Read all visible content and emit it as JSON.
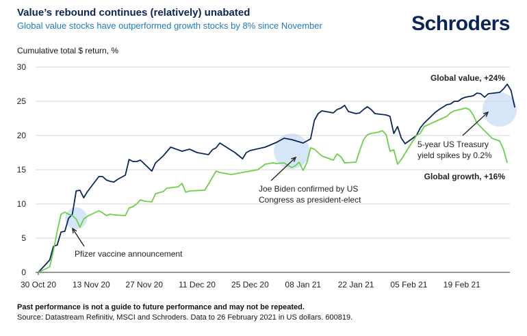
{
  "brand": "Schroders",
  "chart_data": {
    "type": "line",
    "title": "Value’s rebound continues (relatively) unabated",
    "subtitle": "Global value stocks have outperformed growth stocks by 8% since November",
    "ylabel": "Cumulative total $ return, %",
    "ylim": [
      0,
      30
    ],
    "yticks": [
      0,
      5,
      10,
      15,
      20,
      25,
      30
    ],
    "x_start": "2020-10-30",
    "x_end": "2021-02-26",
    "xticks": [
      {
        "label": "30 Oct 20",
        "day": 0
      },
      {
        "label": "13 Nov 20",
        "day": 14
      },
      {
        "label": "27 Nov 20",
        "day": 28
      },
      {
        "label": "11 Dec 20",
        "day": 42
      },
      {
        "label": "25 Dec 20",
        "day": 56
      },
      {
        "label": "08 Jan 21",
        "day": 70
      },
      {
        "label": "22 Jan 21",
        "day": 84
      },
      {
        "label": "05 Feb 21",
        "day": 98
      },
      {
        "label": "19 Feb 21",
        "day": 112
      }
    ],
    "series": [
      {
        "name": "Global value, +24%",
        "color": "#0b2559",
        "points": [
          [
            0,
            0
          ],
          [
            3,
            1.8
          ],
          [
            4,
            3.8
          ],
          [
            5,
            4.0
          ],
          [
            6,
            5.9
          ],
          [
            7,
            6.0
          ],
          [
            8,
            7.9
          ],
          [
            9,
            8.5
          ],
          [
            10,
            11.9
          ],
          [
            11,
            12.0
          ],
          [
            12,
            10.9
          ],
          [
            13,
            11.8
          ],
          [
            16,
            14.0
          ],
          [
            17,
            14.0
          ],
          [
            18,
            13.5
          ],
          [
            19,
            13.3
          ],
          [
            20,
            13.2
          ],
          [
            21,
            13.6
          ],
          [
            23,
            14.2
          ],
          [
            24,
            16.5
          ],
          [
            25,
            16.2
          ],
          [
            26,
            16.2
          ],
          [
            27,
            16.4
          ],
          [
            30,
            14.8
          ],
          [
            31,
            16.0
          ],
          [
            33,
            17.0
          ],
          [
            35,
            18.3
          ],
          [
            38,
            17.7
          ],
          [
            40,
            18.0
          ],
          [
            42,
            17.5
          ],
          [
            45,
            17.2
          ],
          [
            46,
            17.9
          ],
          [
            47,
            18.2
          ],
          [
            48,
            18.9
          ],
          [
            52,
            17.5
          ],
          [
            54,
            16.6
          ],
          [
            55,
            17.5
          ],
          [
            56,
            17.8
          ],
          [
            60,
            18.3
          ],
          [
            63,
            19.0
          ],
          [
            65,
            19.6
          ],
          [
            67,
            19.4
          ],
          [
            70,
            18.9
          ],
          [
            72,
            19.5
          ],
          [
            73,
            22.2
          ],
          [
            74,
            23.2
          ],
          [
            75,
            23.6
          ],
          [
            78,
            23.3
          ],
          [
            79,
            23.8
          ],
          [
            80,
            24.0
          ],
          [
            81,
            24.4
          ],
          [
            82,
            23.5
          ],
          [
            84,
            23.2
          ],
          [
            85,
            23.3
          ],
          [
            86,
            23.8
          ],
          [
            87,
            24.2
          ],
          [
            88,
            23.8
          ],
          [
            89,
            23.2
          ],
          [
            92,
            23.0
          ],
          [
            93,
            22.8
          ],
          [
            94,
            20.3
          ],
          [
            95,
            21.3
          ],
          [
            96,
            19.6
          ],
          [
            97,
            18.8
          ],
          [
            98,
            19.2
          ],
          [
            100,
            20.0
          ],
          [
            101,
            21.1
          ],
          [
            102,
            21.8
          ],
          [
            105,
            23.4
          ],
          [
            106,
            23.8
          ],
          [
            108,
            24.5
          ],
          [
            109,
            24.6
          ],
          [
            110,
            25.0
          ],
          [
            111,
            25.0
          ],
          [
            112,
            25.4
          ],
          [
            113,
            25.6
          ],
          [
            115,
            25.8
          ],
          [
            116,
            26.2
          ],
          [
            117,
            26.1
          ],
          [
            118,
            25.6
          ],
          [
            119,
            26.1
          ],
          [
            122,
            26.3
          ],
          [
            123,
            26.8
          ],
          [
            124,
            27.5
          ],
          [
            125,
            26.6
          ],
          [
            126,
            24.1
          ]
        ]
      },
      {
        "name": "Global growth, +16%",
        "color": "#6ccf47",
        "points": [
          [
            0,
            0
          ],
          [
            3,
            0.8
          ],
          [
            4,
            3.2
          ],
          [
            5,
            6.0
          ],
          [
            6,
            8.5
          ],
          [
            7,
            8.8
          ],
          [
            8,
            8.5
          ],
          [
            9,
            8.3
          ],
          [
            10,
            7.8
          ],
          [
            11,
            6.6
          ],
          [
            12,
            7.8
          ],
          [
            13,
            8.2
          ],
          [
            16,
            9.0
          ],
          [
            17,
            8.7
          ],
          [
            18,
            8.3
          ],
          [
            19,
            8.5
          ],
          [
            20,
            8.4
          ],
          [
            23,
            8.3
          ],
          [
            24,
            9.4
          ],
          [
            25,
            9.6
          ],
          [
            26,
            10.0
          ],
          [
            27,
            10.6
          ],
          [
            28,
            10.4
          ],
          [
            30,
            10.3
          ],
          [
            31,
            11.5
          ],
          [
            33,
            11.8
          ],
          [
            34,
            12.3
          ],
          [
            37,
            12.5
          ],
          [
            38,
            13.0
          ],
          [
            39,
            11.7
          ],
          [
            40,
            11.9
          ],
          [
            44,
            12.0
          ],
          [
            45,
            12.9
          ],
          [
            47,
            14.8
          ],
          [
            48,
            14.6
          ],
          [
            51,
            14.3
          ],
          [
            53,
            14.5
          ],
          [
            56,
            14.8
          ],
          [
            58,
            15.0
          ],
          [
            60,
            15.8
          ],
          [
            62,
            16.0
          ],
          [
            63,
            15.9
          ],
          [
            65,
            16.0
          ],
          [
            67,
            15.3
          ],
          [
            68,
            15.6
          ],
          [
            69,
            16.1
          ],
          [
            70,
            14.9
          ],
          [
            71,
            16.0
          ],
          [
            72,
            18.2
          ],
          [
            73,
            18.0
          ],
          [
            75,
            17.0
          ],
          [
            76,
            16.8
          ],
          [
            77,
            16.6
          ],
          [
            78,
            16.4
          ],
          [
            79,
            17.3
          ],
          [
            80,
            16.9
          ],
          [
            81,
            16.0
          ],
          [
            84,
            16.1
          ],
          [
            85,
            17.8
          ],
          [
            86,
            19.4
          ],
          [
            87,
            20.1
          ],
          [
            88,
            20.3
          ],
          [
            90,
            20.5
          ],
          [
            91,
            20.7
          ],
          [
            92,
            20.1
          ],
          [
            93,
            17.7
          ],
          [
            94,
            17.9
          ],
          [
            95,
            15.8
          ],
          [
            96,
            16.5
          ],
          [
            98,
            18.3
          ],
          [
            100,
            20.0
          ],
          [
            101,
            20.3
          ],
          [
            102,
            21.3
          ],
          [
            106,
            22.3
          ],
          [
            108,
            22.8
          ],
          [
            109,
            23.3
          ],
          [
            110,
            23.6
          ],
          [
            113,
            24.0
          ],
          [
            114,
            23.8
          ],
          [
            115,
            23.0
          ],
          [
            116,
            21.8
          ],
          [
            118,
            20.7
          ],
          [
            120,
            19.6
          ],
          [
            122,
            19.2
          ],
          [
            123,
            18.0
          ],
          [
            124,
            16.0
          ]
        ]
      }
    ],
    "annotations": [
      {
        "text": "Pfizer vaccine announcement",
        "day": 10,
        "value": 7.9
      },
      {
        "lines": [
          "Joe Biden confirmed by US",
          "Congress as president-elect"
        ],
        "day": 67,
        "value": 17.5
      },
      {
        "lines": [
          "5-year US Treasury",
          "yield spikes by 0.2%"
        ],
        "day": 122,
        "value": 23.5
      }
    ],
    "legend": {
      "value_label": "Global value, +24%",
      "growth_label": "Global growth, +16%"
    }
  },
  "footer": {
    "disclaimer": "Past performance is not a guide to future performance and may not be repeated.",
    "source": "Source: Datastream Refinitiv, MSCI and Schroders. Data to 26 February 2021 in US dollars. 600819."
  }
}
